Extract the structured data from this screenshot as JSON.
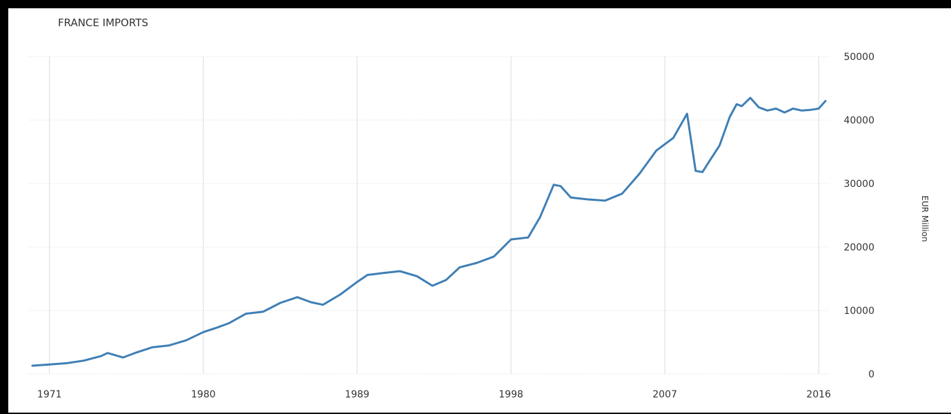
{
  "chart_data": {
    "type": "line",
    "title": "FRANCE IMPORTS",
    "ylabel": "EUR Million",
    "xlim": [
      1969.8,
      2016.6
    ],
    "ylim": [
      0,
      50000
    ],
    "x_ticks": [
      1971,
      1980,
      1989,
      1998,
      2007,
      2016
    ],
    "y_ticks": [
      0,
      10000,
      20000,
      30000,
      40000,
      50000
    ],
    "grid": true,
    "series": [
      {
        "color": "#3f7fb5",
        "x": [
          1970.0,
          1971.0,
          1972.0,
          1973.0,
          1974.0,
          1974.4,
          1974.8,
          1975.3,
          1976.0,
          1977.0,
          1978.0,
          1979.0,
          1980.0,
          1980.8,
          1981.5,
          1982.5,
          1983.5,
          1984.5,
          1985.5,
          1986.3,
          1987.0,
          1988.0,
          1989.0,
          1989.6,
          1990.5,
          1991.5,
          1992.5,
          1993.4,
          1994.2,
          1995.0,
          1996.0,
          1997.0,
          1998.0,
          1999.0,
          1999.7,
          2000.5,
          2000.9,
          2001.5,
          2002.5,
          2003.5,
          2004.5,
          2005.5,
          2006.5,
          2007.5,
          2008.3,
          2008.8,
          2009.2,
          2009.6,
          2010.2,
          2010.8,
          2011.2,
          2011.5,
          2012.0,
          2012.5,
          2013.0,
          2013.5,
          2014.0,
          2014.5,
          2015.0,
          2015.5,
          2016.0,
          2016.4
        ],
        "values": [
          1300,
          1500,
          1700,
          2100,
          2800,
          3300,
          3000,
          2600,
          3300,
          4200,
          4500,
          5300,
          6600,
          7300,
          8000,
          9500,
          9800,
          11200,
          12100,
          11300,
          10900,
          12500,
          14500,
          15600,
          15900,
          16200,
          15400,
          13900,
          14800,
          16800,
          17500,
          18500,
          21200,
          21500,
          24700,
          29800,
          29600,
          27800,
          27500,
          27300,
          28400,
          31500,
          35200,
          37200,
          41000,
          32000,
          31800,
          33500,
          36000,
          40500,
          42500,
          42200,
          43500,
          42000,
          41500,
          41800,
          41200,
          41800,
          41500,
          41600,
          41800,
          43000
        ]
      }
    ]
  }
}
